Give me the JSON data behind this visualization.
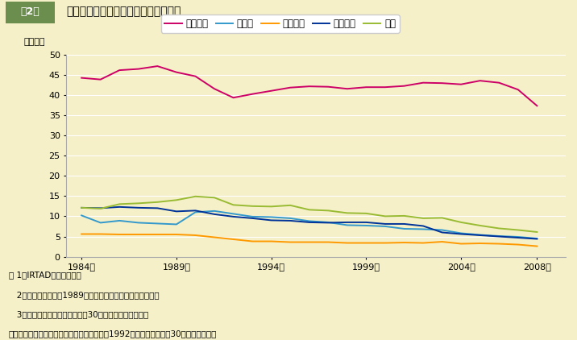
{
  "years": [
    1984,
    1985,
    1986,
    1987,
    1988,
    1989,
    1990,
    1991,
    1992,
    1993,
    1994,
    1995,
    1996,
    1997,
    1998,
    1999,
    2000,
    2001,
    2002,
    2003,
    2004,
    2005,
    2006,
    2007,
    2008
  ],
  "america_data": {
    "values": [
      44.2,
      43.8,
      46.1,
      46.4,
      47.1,
      45.6,
      44.6,
      41.5,
      39.3,
      40.2,
      41.0,
      41.8,
      42.1,
      42.0,
      41.5,
      41.9,
      41.9,
      42.2,
      43.0,
      42.9,
      42.6,
      43.5,
      43.0,
      41.3,
      37.3
    ],
    "color": "#cc0066",
    "label": "アメリカ"
  },
  "germany_data": {
    "values": [
      10.2,
      8.4,
      8.9,
      8.4,
      8.2,
      8.0,
      11.0,
      11.3,
      10.6,
      9.9,
      9.8,
      9.5,
      8.8,
      8.5,
      7.8,
      7.7,
      7.5,
      6.9,
      6.8,
      6.6,
      5.8,
      5.4,
      5.1,
      4.9,
      4.5
    ],
    "color": "#3399cc",
    "label": "ドイツ"
  },
  "uk_data": {
    "values": [
      5.6,
      5.6,
      5.5,
      5.5,
      5.5,
      5.5,
      5.3,
      4.8,
      4.3,
      3.8,
      3.8,
      3.6,
      3.6,
      3.6,
      3.4,
      3.4,
      3.4,
      3.5,
      3.4,
      3.7,
      3.2,
      3.3,
      3.2,
      3.0,
      2.6
    ],
    "color": "#ff9900",
    "label": "イギリス"
  },
  "france_data": {
    "values": [
      12.1,
      12.0,
      12.3,
      12.1,
      12.0,
      11.2,
      11.4,
      10.5,
      9.9,
      9.5,
      9.0,
      8.9,
      8.5,
      8.4,
      8.5,
      8.5,
      8.1,
      8.1,
      7.6,
      6.0,
      5.6,
      5.3,
      5.0,
      4.7,
      4.4
    ],
    "color": "#003399",
    "label": "フランス"
  },
  "japan_data": {
    "values": [
      12.1,
      11.9,
      13.0,
      13.2,
      13.5,
      14.0,
      14.9,
      14.6,
      12.8,
      12.5,
      12.4,
      12.7,
      11.6,
      11.4,
      10.8,
      10.7,
      10.0,
      10.1,
      9.5,
      9.6,
      8.5,
      7.7,
      7.0,
      6.6,
      6.1
    ],
    "color": "#99bb33",
    "label": "日本"
  },
  "ylabel": "（千人）",
  "ylim": [
    0,
    50
  ],
  "yticks": [
    0,
    5,
    10,
    15,
    20,
    25,
    30,
    35,
    40,
    45,
    50
  ],
  "xtick_years": [
    1984,
    1989,
    1994,
    1999,
    2004,
    2008
  ],
  "background_color": "#f5f0c8",
  "plot_bg": "#f5f0c8",
  "header_label": "第2図",
  "header_title": "主な欧米諸国の交通事故死者数の推移",
  "header_box_color": "#6b8e4e",
  "note_lines": [
    "注 1　IRTAD資料による。",
    "   2　ドイツの値は，1989年までは旧西ドイツ地域に限る。",
    "   3　死者数の定義は事故発生後30日以内の死者である。",
    "　　　　だだし，フランスの数値及び日本の1992年以前の数値は，30日死者換算数。"
  ]
}
